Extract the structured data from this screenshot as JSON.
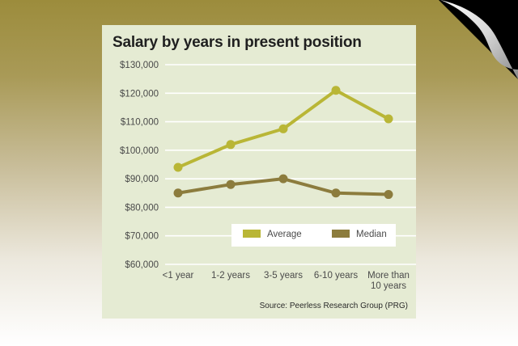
{
  "colors": {
    "average": "#b9b636",
    "median": "#8c7c3d",
    "grid": "#ffffff",
    "card": "#e5ebd3"
  },
  "chart_data": {
    "type": "line",
    "title": "Salary by years in present position",
    "categories": [
      "<1 year",
      "1-2 years",
      "3-5 years",
      "6-10 years",
      "More than 10 years"
    ],
    "category_lines": [
      [
        "<1 year"
      ],
      [
        "1-2 years"
      ],
      [
        "3-5 years"
      ],
      [
        "6-10 years"
      ],
      [
        "More than",
        "10 years"
      ]
    ],
    "series": [
      {
        "name": "Average",
        "values": [
          94000,
          102000,
          107500,
          121000,
          111000
        ]
      },
      {
        "name": "Median",
        "values": [
          85000,
          88000,
          90000,
          85000,
          84500
        ]
      }
    ],
    "y_ticks": [
      "$130,000",
      "$120,000",
      "$110,000",
      "$100,000",
      "$90,000",
      "$80,000",
      "$70,000",
      "$60,000"
    ],
    "ylim": [
      60000,
      130000
    ],
    "grid": true,
    "legend": "bottom-right",
    "source": "Source: Peerless Research Group (PRG)"
  }
}
